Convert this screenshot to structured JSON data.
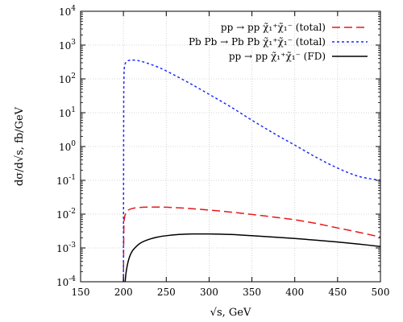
{
  "chart_data": {
    "type": "line",
    "title": "",
    "xlabel": "√s, GeV",
    "ylabel": "dσ/d√s, fb/GeV",
    "xlim": [
      150,
      500
    ],
    "ylim": [
      0.0001,
      10000
    ],
    "y_scale": "log",
    "grid": true,
    "legend_position": "top-right",
    "x_ticks": [
      150,
      200,
      250,
      300,
      350,
      400,
      450,
      500
    ],
    "y_ticks": [
      {
        "value": 0.0001,
        "label": "10^-4"
      },
      {
        "value": 0.001,
        "label": "10^-3"
      },
      {
        "value": 0.01,
        "label": "10^-2"
      },
      {
        "value": 0.1,
        "label": "10^-1"
      },
      {
        "value": 1,
        "label": "10^0"
      },
      {
        "value": 10,
        "label": "10^1"
      },
      {
        "value": 100,
        "label": "10^2"
      },
      {
        "value": 1000,
        "label": "10^3"
      },
      {
        "value": 10000,
        "label": "10^4"
      }
    ],
    "series": [
      {
        "name": "pp → pp χ̃₁⁺χ̃₁⁻ (total)",
        "color": "#e41a1c",
        "dash": "long-dash",
        "x": [
          200,
          200.5,
          201,
          202,
          204,
          207,
          212,
          220,
          230,
          240,
          250,
          275,
          300,
          325,
          350,
          375,
          400,
          425,
          450,
          475,
          500
        ],
        "y": [
          0.0001,
          0.0045,
          0.007,
          0.0095,
          0.012,
          0.0138,
          0.015,
          0.0158,
          0.0162,
          0.0162,
          0.016,
          0.0148,
          0.0132,
          0.0115,
          0.0098,
          0.0082,
          0.0068,
          0.0053,
          0.0039,
          0.0029,
          0.0021
        ]
      },
      {
        "name": "Pb Pb → Pb Pb χ̃₁⁺χ̃₁⁻ (total)",
        "color": "#1a2cff",
        "dash": "short-dash",
        "x": [
          200,
          200.3,
          200.6,
          201,
          202,
          204,
          207,
          210,
          215,
          220,
          230,
          240,
          250,
          275,
          300,
          325,
          350,
          375,
          400,
          425,
          450,
          475,
          500
        ],
        "y": [
          0.0001,
          10,
          100,
          200,
          280,
          330,
          355,
          360,
          355,
          335,
          280,
          225,
          172,
          80,
          35,
          15,
          6,
          2.5,
          1.1,
          0.48,
          0.23,
          0.13,
          0.1
        ]
      },
      {
        "name": "pp → pp χ̃₁⁺χ̃₁⁻ (FD)",
        "color": "#000000",
        "dash": "solid",
        "x": [
          202,
          203,
          205,
          208,
          212,
          220,
          230,
          240,
          250,
          265,
          280,
          300,
          325,
          350,
          375,
          400,
          425,
          450,
          475,
          500
        ],
        "y": [
          0.0001,
          0.00018,
          0.00035,
          0.00062,
          0.00092,
          0.0014,
          0.0018,
          0.0021,
          0.0023,
          0.0025,
          0.0026,
          0.0026,
          0.0025,
          0.0023,
          0.0021,
          0.0019,
          0.0017,
          0.0015,
          0.0013,
          0.0011
        ]
      }
    ]
  }
}
